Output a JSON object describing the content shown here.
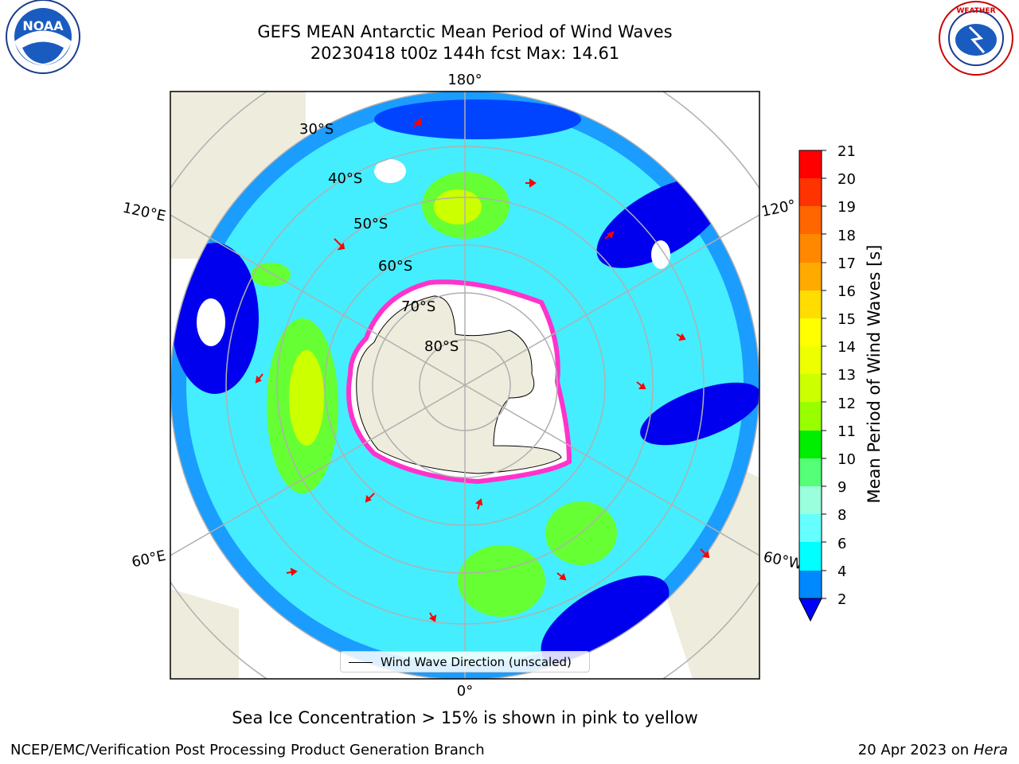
{
  "header": {
    "title_line1": "GEFS MEAN Antarctic Mean Period of Wind Waves",
    "title_line2": "20230418 t00z 144h fcst   Max: 14.61"
  },
  "logos": {
    "left": "NOAA",
    "right": "NATIONAL WEATHER SERVICE"
  },
  "map": {
    "projection": "south polar stereographic",
    "longitude_labels": [
      "180°",
      "120°E",
      "120°",
      "60°E",
      "60°W",
      "0°"
    ],
    "latitude_labels": [
      "30°S",
      "40°S",
      "50°S",
      "60°S",
      "70°S",
      "80°S"
    ],
    "colors": {
      "land": "#eeecdc",
      "ice_edge": "#ff33cc",
      "arrows": "#ff0000",
      "gridlines": "#b0b0b0"
    }
  },
  "legend": {
    "label": "Wind Wave Direction (unscaled)"
  },
  "colorbar": {
    "label": "Mean Period of Wind Waves [s]",
    "ticks": [
      "21",
      "20",
      "19",
      "18",
      "17",
      "16",
      "15",
      "14",
      "13",
      "12",
      "11",
      "10",
      "9",
      "8",
      "6",
      "4",
      "2"
    ],
    "colors_top_to_bottom": [
      "#ff0000",
      "#ff3300",
      "#ff6600",
      "#ff8800",
      "#ffaa00",
      "#ffcc00",
      "#ffee00",
      "#eeff00",
      "#ccff00",
      "#99ff00",
      "#66ff00",
      "#00ee00",
      "#55ff77",
      "#99ffcc",
      "#66ffff",
      "#00ffff",
      "#0099ff",
      "#0055ff",
      "#0000ff"
    ]
  },
  "notes": {
    "sea_ice": "Sea Ice Concentration > 15% is shown in pink to yellow"
  },
  "footer": {
    "left": "NCEP/EMC/Verification Post Processing Product Generation Branch",
    "right_date": "20 Apr 2023 on ",
    "right_host": "Hera"
  }
}
